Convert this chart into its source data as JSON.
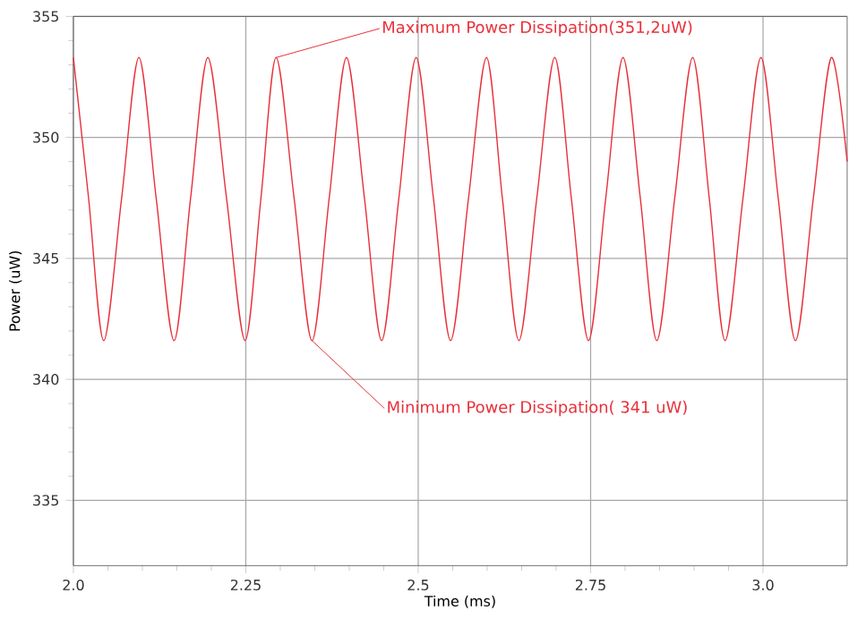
{
  "chart_data": {
    "type": "line",
    "xlabel": "Time (ms)",
    "ylabel": "Power (uW)",
    "x": [
      2.0,
      2.022,
      2.044,
      2.07,
      2.095,
      2.12,
      2.146,
      2.17,
      2.195,
      2.222,
      2.249,
      2.272,
      2.294,
      2.32,
      2.346,
      2.371,
      2.396,
      2.422,
      2.447,
      2.472,
      2.497,
      2.522,
      2.547,
      2.573,
      2.599,
      2.622,
      2.646,
      2.672,
      2.698,
      2.722,
      2.747,
      2.772,
      2.797,
      2.822,
      2.846,
      2.872,
      2.898,
      2.922,
      2.945,
      2.971,
      2.997,
      3.022,
      3.047,
      3.073,
      3.099,
      3.122
    ],
    "series": [
      {
        "color": "#e8303a",
        "values": [
          353.3,
          347.5,
          341.6,
          347.5,
          353.3,
          347.5,
          341.6,
          347.5,
          353.3,
          347.5,
          341.6,
          347.5,
          353.3,
          347.5,
          341.6,
          347.5,
          353.3,
          347.5,
          341.6,
          347.5,
          353.3,
          347.5,
          341.6,
          347.5,
          353.3,
          347.5,
          341.6,
          347.5,
          353.3,
          347.5,
          341.6,
          347.5,
          353.3,
          347.5,
          341.6,
          347.5,
          353.3,
          347.5,
          341.6,
          347.5,
          353.3,
          347.5,
          341.6,
          347.5,
          353.3,
          349.0
        ]
      }
    ],
    "xlim": [
      2.0,
      3.122
    ],
    "ylim": [
      332.3,
      355
    ],
    "xticks": [
      {
        "value": 2.0,
        "label": "2.0"
      },
      2.25,
      2.5,
      2.75,
      {
        "value": 3.0,
        "label": "3.0"
      }
    ],
    "yticks": [
      335,
      340,
      345,
      350,
      355
    ],
    "grid": true,
    "marker": "none",
    "line_style": "solid",
    "annotations": [
      {
        "text": "Maximum Power Dissipation(351,2uW)",
        "x": 2.294,
        "y": 353.3
      },
      {
        "text": "Minimum Power Dissipation( 341 uW)",
        "x": 2.346,
        "y": 341.6
      }
    ]
  }
}
